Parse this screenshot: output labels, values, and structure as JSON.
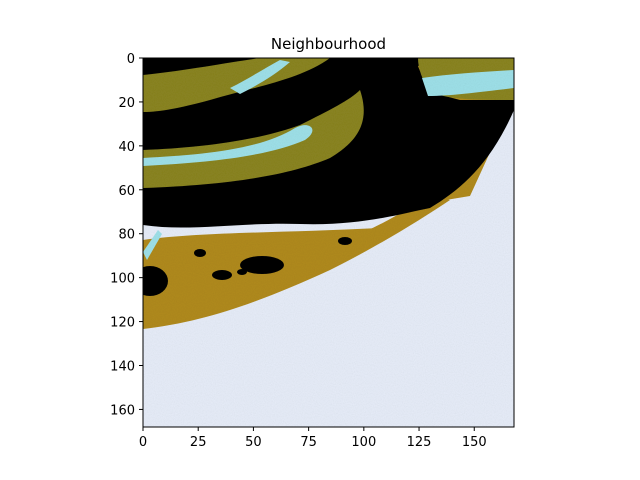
{
  "chart_data": {
    "type": "heatmap",
    "title": "Neighbourhood",
    "xlabel": "",
    "ylabel": "",
    "xlim": [
      0,
      168
    ],
    "ylim": [
      168,
      0
    ],
    "x_ticks": [
      0,
      25,
      50,
      75,
      100,
      125,
      150
    ],
    "y_ticks": [
      0,
      20,
      40,
      60,
      80,
      100,
      120,
      140,
      160
    ],
    "grid": false,
    "colors": {
      "dark": "#050505",
      "olive": "#8a8420",
      "ochre": "#b08a1e",
      "cyan": "#9ee0e8",
      "background": "#e6ecf8"
    }
  }
}
